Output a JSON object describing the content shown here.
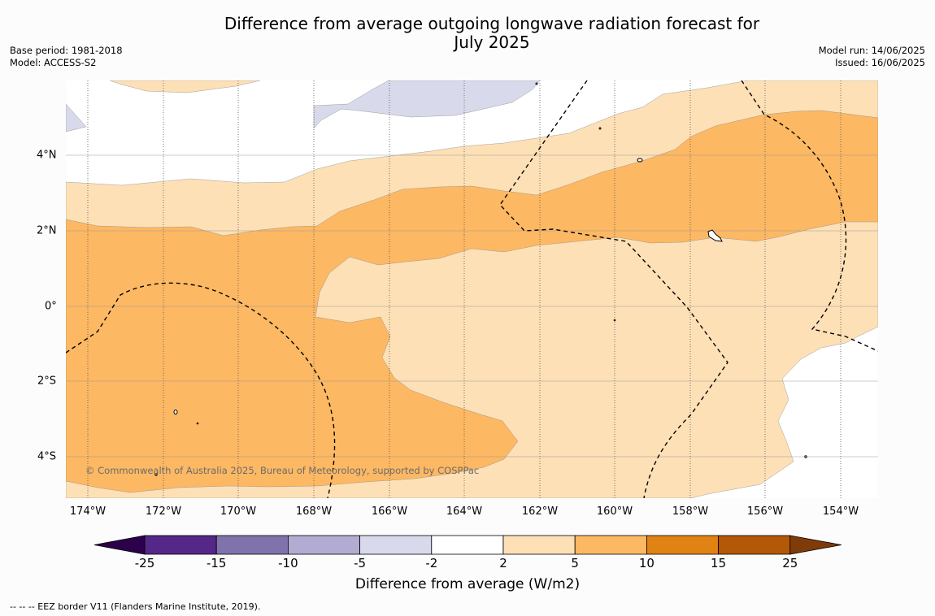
{
  "title_line1": "Difference from average outgoing longwave radiation forecast for",
  "title_line2": "July 2025",
  "base_period": "Base period: 1981-2018",
  "model": "Model: ACCESS-S2",
  "model_run": "Model run: 14/06/2025",
  "issued": "Issued: 16/06/2025",
  "copyright": "© Commonwealth of Australia 2025, Bureau of Meteorology, supported by COSPPac",
  "longitude_labels": [
    "174°W",
    "172°W",
    "170°W",
    "168°W",
    "166°W",
    "164°W",
    "162°W",
    "160°W",
    "158°W",
    "156°W",
    "154°W"
  ],
  "latitude_labels": [
    "4°N",
    "2°N",
    "0°",
    "2°S",
    "4°S"
  ],
  "colorbar": {
    "title": "Difference from average (W/m2)",
    "ticks": [
      "-25",
      "-15",
      "-10",
      "-5",
      "-2",
      "2",
      "5",
      "10",
      "15",
      "25"
    ],
    "colors": [
      "#2d004b",
      "#542788",
      "#8073ac",
      "#b2abd2",
      "#d8daeb",
      "#ffffff",
      "#fee0b6",
      "#fdb863",
      "#e08214",
      "#b35806",
      "#7f3b08"
    ]
  },
  "legend_note": "-- -- -- EEZ border V11 (Flanders Marine Institute, 2019).",
  "map_colors": {
    "lavender": "#d8daeb",
    "light_orange": "#fee0b6",
    "orange": "#fdb863"
  }
}
